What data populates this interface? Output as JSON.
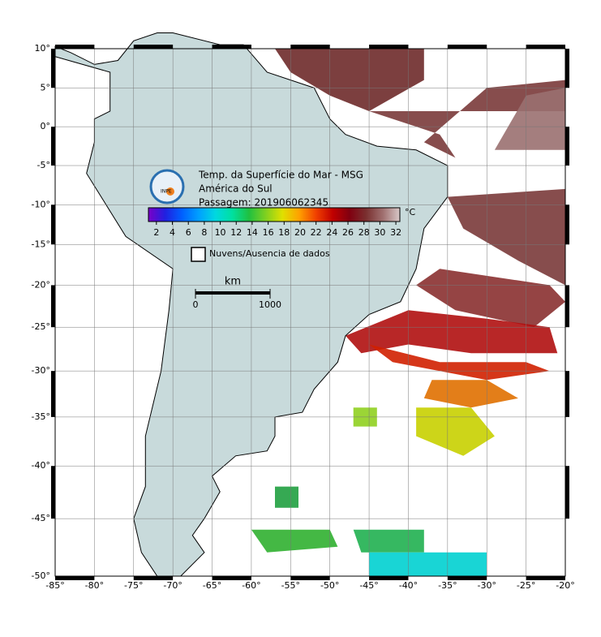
{
  "title": {
    "lines": [
      "Temp. da Superfície do Mar - MSG",
      "América do Sul",
      "Passagem: 201906062345"
    ]
  },
  "logo": "INPE",
  "colorbar": {
    "unit": "°C",
    "ticks": [
      2,
      4,
      6,
      8,
      10,
      12,
      14,
      16,
      18,
      20,
      22,
      24,
      26,
      28,
      30,
      32
    ],
    "lim": [
      1,
      32.5
    ],
    "colors": [
      "#7a00c8",
      "#2020e0",
      "#0060ff",
      "#00a0ff",
      "#00d8e0",
      "#00e0a0",
      "#20c040",
      "#80d020",
      "#e0e000",
      "#ffa000",
      "#f04000",
      "#c00000",
      "#800010",
      "#7a3030",
      "#a07070",
      "#d8c8c8"
    ]
  },
  "legend": {
    "label": "Nuvens/Ausencia de dados"
  },
  "scale_bar": {
    "unit": "km",
    "ticks": [
      0,
      1000
    ]
  },
  "map": {
    "xlim": [
      -85,
      -20
    ],
    "ylim": [
      -50,
      10
    ],
    "xticks": [
      {
        "value": -85,
        "label": "-85°"
      },
      {
        "value": -80,
        "label": "-80°"
      },
      {
        "value": -75,
        "label": "-75°"
      },
      {
        "value": -70,
        "label": "-70°"
      },
      {
        "value": -65,
        "label": "-65°"
      },
      {
        "value": -60,
        "label": "-60°"
      },
      {
        "value": -55,
        "label": "-55°"
      },
      {
        "value": -50,
        "label": "-50°"
      },
      {
        "value": -45,
        "label": "-45°"
      },
      {
        "value": -40,
        "label": "-40°"
      },
      {
        "value": -35,
        "label": "-35°"
      },
      {
        "value": -30,
        "label": "-30°"
      },
      {
        "value": -25,
        "label": "-25°"
      },
      {
        "value": -20,
        "label": "-20°"
      }
    ],
    "yticks": [
      {
        "value": 10,
        "label": "10°"
      },
      {
        "value": 5,
        "label": "5°"
      },
      {
        "value": 0,
        "label": "0°"
      },
      {
        "value": -5,
        "label": "-5°"
      },
      {
        "value": -10,
        "label": "-10°"
      },
      {
        "value": -15,
        "label": "-15°"
      },
      {
        "value": -20,
        "label": "-20°"
      },
      {
        "value": -25,
        "label": "-25°"
      },
      {
        "value": -30,
        "label": "-30°"
      },
      {
        "value": -35,
        "label": "-35°"
      },
      {
        "value": -40,
        "label": "-40°"
      },
      {
        "value": -45,
        "label": "-45°"
      },
      {
        "value": -50,
        "label": "-50°"
      }
    ]
  }
}
